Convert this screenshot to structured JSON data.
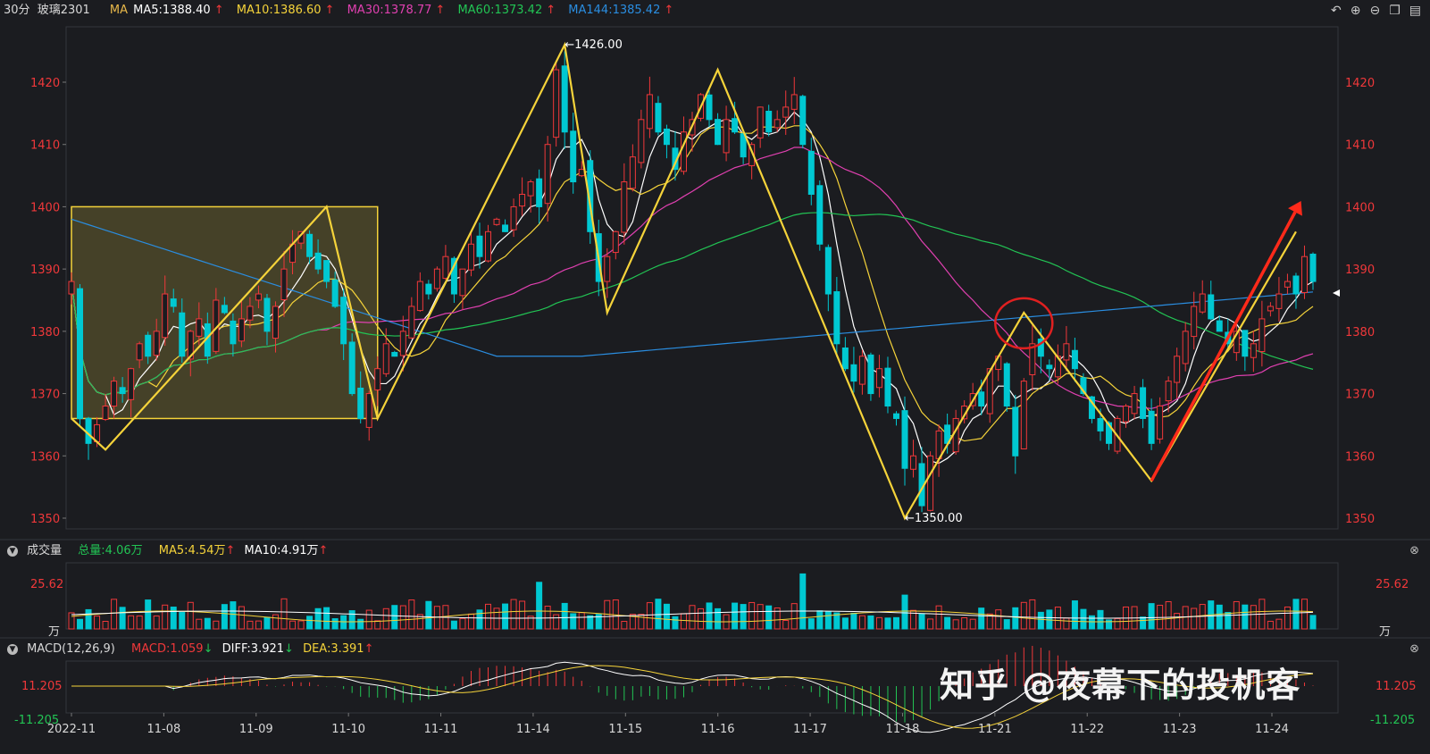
{
  "header": {
    "period": "30分",
    "symbol": "玻璃2301",
    "ma_label": "MA",
    "ma5": "MA5:1388.40",
    "ma10": "MA10:1386.60",
    "ma30": "MA30:1378.77",
    "ma60": "MA60:1373.42",
    "ma144": "MA144:1385.42",
    "up_arrow": "↑",
    "down_arrow": "↓"
  },
  "colors": {
    "up": "#f0383a",
    "down": "#00c8d2",
    "ma5": "#ffffff",
    "ma10": "#f5d33a",
    "ma30": "#e040b0",
    "ma60": "#22c454",
    "ma144": "#2a8de0",
    "zigzag": "#f5d33a",
    "arrow": "#ff2a1a"
  },
  "volume_panel": {
    "title": "成交量",
    "total": "总量:4.06万",
    "ma5": "MA5:4.54万",
    "ma10": "MA10:4.91万",
    "max_label": "25.62",
    "unit": "万"
  },
  "macd_panel": {
    "title": "MACD(12,26,9)",
    "macd": "MACD:1.059",
    "diff": "DIFF:3.921",
    "dea": "DEA:3.391",
    "top_label": "11.205",
    "bottom_label": "-11.205"
  },
  "annotations": {
    "high_label": "←1426.00",
    "low_label": "←1350.00"
  },
  "watermark": "知乎 @夜幕下的投机客",
  "chart_data": {
    "type": "candlestick",
    "y_ticks": [
      1350,
      1360,
      1370,
      1380,
      1390,
      1400,
      1410,
      1420
    ],
    "ylim": [
      1348,
      1430
    ],
    "x_ticks": [
      "2022-11",
      "11-08",
      "11-09",
      "11-10",
      "11-11",
      "11-14",
      "11-15",
      "11-16",
      "11-17",
      "11-18",
      "11-21",
      "11-22",
      "11-23",
      "11-24"
    ],
    "zigzag": [
      [
        0,
        1366
      ],
      [
        4,
        1361
      ],
      [
        30,
        1400
      ],
      [
        36,
        1366
      ],
      [
        58,
        1426
      ],
      [
        63,
        1383
      ],
      [
        76,
        1422
      ],
      [
        98,
        1350
      ],
      [
        112,
        1383
      ],
      [
        127,
        1356
      ],
      [
        144,
        1396
      ]
    ],
    "consolidation_box": {
      "x_start": 0,
      "x_end": 36,
      "y_top": 1400,
      "y_bottom": 1366
    },
    "circle_marker": {
      "x": 112,
      "y": 1382
    },
    "trend_arrow": {
      "from": [
        127,
        1356
      ],
      "to": [
        146,
        1398
      ]
    },
    "close_series": [
      1388,
      1366,
      1362,
      1365,
      1368,
      1372,
      1370,
      1374,
      1378,
      1376,
      1380,
      1386,
      1384,
      1376,
      1380,
      1382,
      1376,
      1385,
      1383,
      1378,
      1382,
      1384,
      1386,
      1380,
      1384,
      1390,
      1394,
      1396,
      1392,
      1390,
      1388,
      1384,
      1378,
      1370,
      1366,
      1370,
      1374,
      1378,
      1376,
      1380,
      1384,
      1388,
      1386,
      1390,
      1392,
      1386,
      1390,
      1394,
      1392,
      1396,
      1398,
      1396,
      1400,
      1402,
      1404,
      1400,
      1410,
      1422,
      1412,
      1404,
      1406,
      1396,
      1388,
      1392,
      1396,
      1404,
      1408,
      1414,
      1418,
      1412,
      1410,
      1406,
      1412,
      1414,
      1418,
      1414,
      1410,
      1414,
      1412,
      1408,
      1410,
      1416,
      1412,
      1414,
      1416,
      1418,
      1410,
      1402,
      1394,
      1386,
      1378,
      1374,
      1372,
      1376,
      1370,
      1374,
      1368,
      1366,
      1358,
      1360,
      1352,
      1360,
      1364,
      1362,
      1366,
      1368,
      1370,
      1368,
      1374,
      1376,
      1368,
      1360,
      1372,
      1378,
      1376,
      1374,
      1376,
      1378,
      1374,
      1370,
      1366,
      1364,
      1362,
      1366,
      1368,
      1370,
      1366,
      1362,
      1368,
      1372,
      1376,
      1380,
      1384,
      1386,
      1382,
      1380,
      1378,
      1380,
      1376,
      1378,
      1382,
      1384,
      1386,
      1388,
      1386,
      1392,
      1388
    ],
    "volume_max": 25.62,
    "macd": {
      "top": 11.205,
      "bottom": -11.205
    }
  }
}
